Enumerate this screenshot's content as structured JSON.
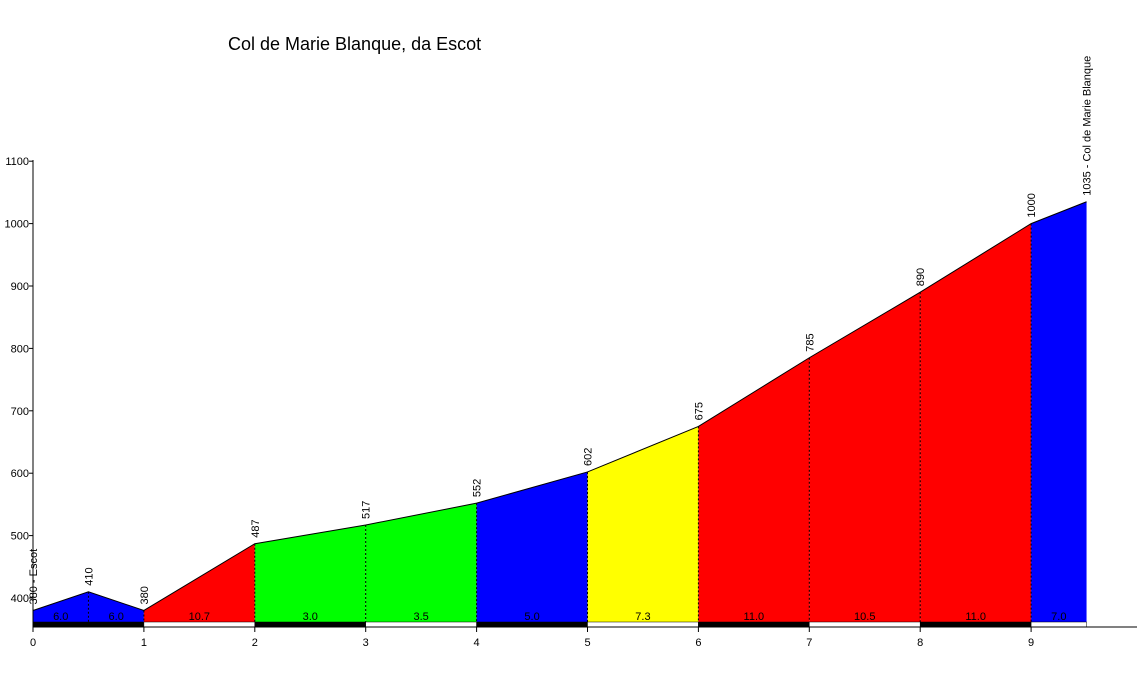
{
  "chart_data": {
    "type": "area",
    "title": "Col de Marie Blanque, da Escot",
    "xlabel": "",
    "ylabel": "",
    "xlim": [
      0,
      10
    ],
    "ylim": [
      360,
      1100
    ],
    "x_ticks": [
      "0",
      "1",
      "2",
      "3",
      "4",
      "5",
      "6",
      "7",
      "8",
      "9"
    ],
    "y_ticks": [
      "400",
      "500",
      "600",
      "700",
      "800",
      "900",
      "1000",
      "1100"
    ],
    "profile_points": [
      {
        "x": 0.0,
        "y": 380,
        "label": "380 - Escot"
      },
      {
        "x": 0.5,
        "y": 410,
        "label": "410"
      },
      {
        "x": 1.0,
        "y": 380,
        "label": "380"
      },
      {
        "x": 2.0,
        "y": 487,
        "label": "487"
      },
      {
        "x": 3.0,
        "y": 517,
        "label": "517"
      },
      {
        "x": 4.0,
        "y": 552,
        "label": "552"
      },
      {
        "x": 5.0,
        "y": 602,
        "label": "602"
      },
      {
        "x": 6.0,
        "y": 675,
        "label": "675"
      },
      {
        "x": 7.0,
        "y": 785,
        "label": "785"
      },
      {
        "x": 8.0,
        "y": 890,
        "label": "890"
      },
      {
        "x": 9.0,
        "y": 1000,
        "label": "1000"
      },
      {
        "x": 9.5,
        "y": 1035,
        "label": "1035 - Col de Marie Blanque"
      }
    ],
    "segments": [
      {
        "x0": 0.0,
        "x1": 0.5,
        "gradient": "6.0",
        "color": "#0000ff"
      },
      {
        "x0": 0.5,
        "x1": 1.0,
        "gradient": "6.0",
        "color": "#0000ff"
      },
      {
        "x0": 1.0,
        "x1": 2.0,
        "gradient": "10.7",
        "color": "#ff0000"
      },
      {
        "x0": 2.0,
        "x1": 3.0,
        "gradient": "3.0",
        "color": "#00ff00"
      },
      {
        "x0": 3.0,
        "x1": 4.0,
        "gradient": "3.5",
        "color": "#00ff00"
      },
      {
        "x0": 4.0,
        "x1": 5.0,
        "gradient": "5.0",
        "color": "#0000ff"
      },
      {
        "x0": 5.0,
        "x1": 6.0,
        "gradient": "7.3",
        "color": "#ffff00"
      },
      {
        "x0": 6.0,
        "x1": 7.0,
        "gradient": "11.0",
        "color": "#ff0000"
      },
      {
        "x0": 7.0,
        "x1": 8.0,
        "gradient": "10.5",
        "color": "#ff0000"
      },
      {
        "x0": 8.0,
        "x1": 9.0,
        "gradient": "11.0",
        "color": "#ff0000"
      },
      {
        "x0": 9.0,
        "x1": 9.5,
        "gradient": "7.0",
        "color": "#0000ff"
      }
    ],
    "grid": false,
    "legend": "none"
  }
}
